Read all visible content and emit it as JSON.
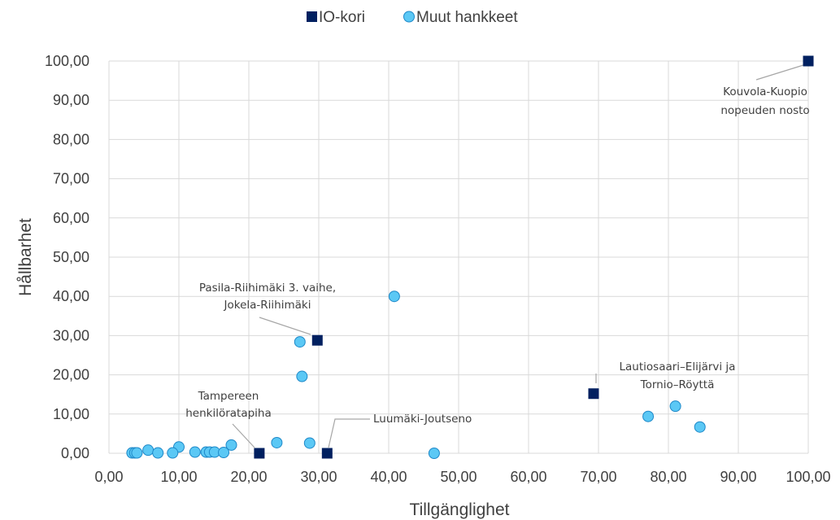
{
  "chart_data": {
    "type": "scatter",
    "xlabel": "Tillgänglighet",
    "ylabel": "Hållbarhet",
    "xlim": [
      0,
      100
    ],
    "ylim": [
      0,
      100
    ],
    "x_ticks": [
      "0,00",
      "10,00",
      "20,00",
      "30,00",
      "40,00",
      "50,00",
      "60,00",
      "70,00",
      "80,00",
      "90,00",
      "100,00"
    ],
    "y_ticks": [
      "0,00",
      "10,00",
      "20,00",
      "30,00",
      "40,00",
      "50,00",
      "60,00",
      "70,00",
      "80,00",
      "90,00",
      "100,00"
    ],
    "grid": true,
    "legend_position": "top",
    "series": [
      {
        "name": "IO-kori",
        "marker": "square",
        "color": "#002060",
        "points": [
          {
            "x": 100.0,
            "y": 100.0
          },
          {
            "x": 29.8,
            "y": 28.8
          },
          {
            "x": 69.3,
            "y": 15.2
          },
          {
            "x": 21.5,
            "y": 0.0
          },
          {
            "x": 31.2,
            "y": 0.0
          }
        ]
      },
      {
        "name": "Muut hankkeet",
        "marker": "circle",
        "color": "#5BC8F5",
        "points": [
          {
            "x": 40.8,
            "y": 40.0
          },
          {
            "x": 27.3,
            "y": 28.4
          },
          {
            "x": 27.6,
            "y": 19.6
          },
          {
            "x": 81.0,
            "y": 12.0
          },
          {
            "x": 77.1,
            "y": 9.4
          },
          {
            "x": 84.5,
            "y": 6.7
          },
          {
            "x": 24.0,
            "y": 2.7
          },
          {
            "x": 28.7,
            "y": 2.6
          },
          {
            "x": 17.5,
            "y": 2.1
          },
          {
            "x": 10.0,
            "y": 1.6
          },
          {
            "x": 5.6,
            "y": 0.8
          },
          {
            "x": 3.3,
            "y": 0.1
          },
          {
            "x": 3.7,
            "y": 0.1
          },
          {
            "x": 4.0,
            "y": 0.1
          },
          {
            "x": 7.0,
            "y": 0.1
          },
          {
            "x": 9.1,
            "y": 0.1
          },
          {
            "x": 12.3,
            "y": 0.3
          },
          {
            "x": 13.9,
            "y": 0.3
          },
          {
            "x": 14.4,
            "y": 0.3
          },
          {
            "x": 15.1,
            "y": 0.3
          },
          {
            "x": 16.4,
            "y": 0.2
          },
          {
            "x": 46.5,
            "y": 0.0
          }
        ]
      }
    ],
    "annotations": [
      {
        "lines": [
          "Kouvola-Kuopio",
          "nopeuden nosto"
        ]
      },
      {
        "lines": [
          "Pasila-Riihimäki 3. vaihe,",
          "Jokela-Riihimäki"
        ]
      },
      {
        "lines": [
          "Lautiosaari–Elijärvi ja",
          "Tornio–Röyttä"
        ]
      },
      {
        "lines": [
          "Tampereen",
          "henkilöratapiha"
        ]
      },
      {
        "lines": [
          "Luumäki-Joutseno"
        ]
      }
    ]
  }
}
